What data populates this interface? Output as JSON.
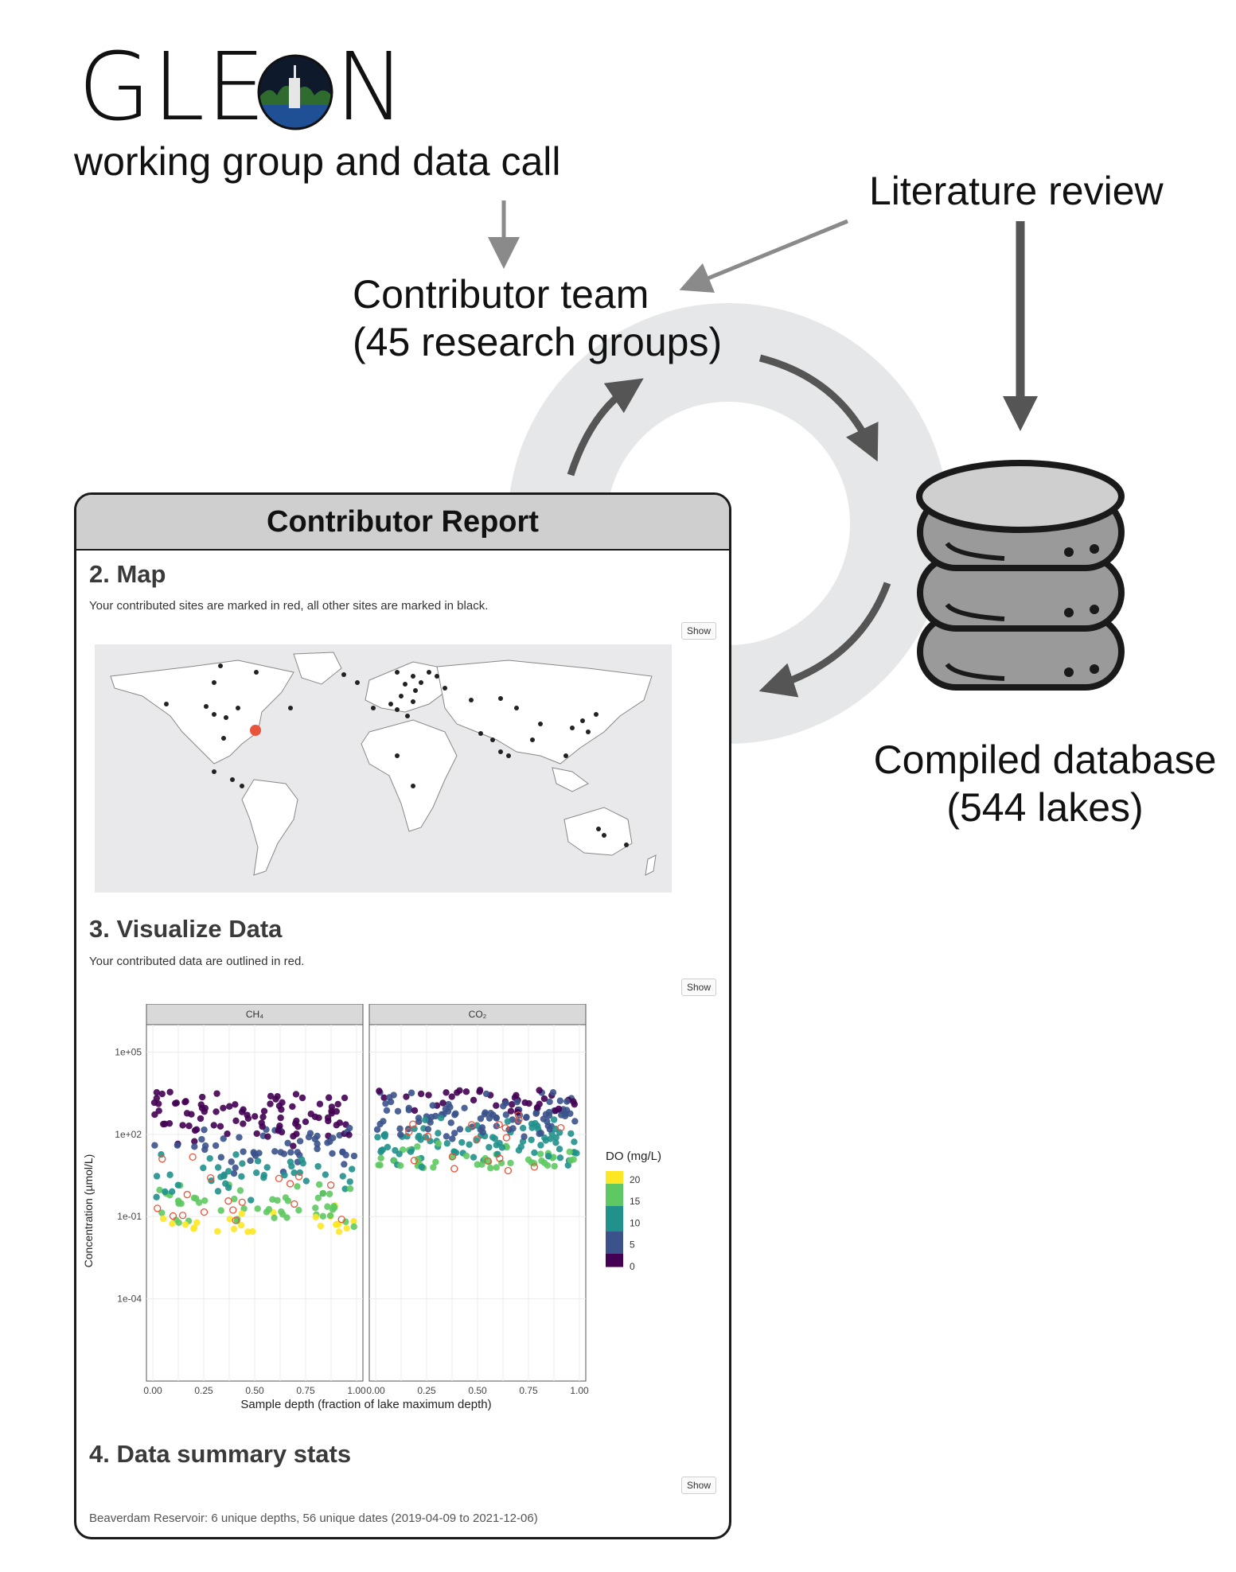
{
  "logo": {
    "text_left": "GLE",
    "text_right": "N"
  },
  "flow": {
    "working_group": "working group and data call",
    "literature": "Literature review",
    "contributor_line1": "Contributor team",
    "contributor_line2": "(45 research groups)",
    "database_line1": "Compiled database",
    "database_line2": "(544 lakes)"
  },
  "report": {
    "header": "Contributor Report",
    "map_title": "2. Map",
    "map_note": "Your contributed sites are marked in red, all other sites are marked in black.",
    "viz_title": "3. Visualize Data",
    "viz_note": "Your contributed data are outlined in red.",
    "stats_title": "4. Data summary stats",
    "stats_text": "Beaverdam Reservoir: 6 unique depths, 56 unique dates (2019-04-09 to 2021-12-06)",
    "show_label": "Show"
  },
  "colors": {
    "arrow_gray": "#8a8a8a",
    "ring_gray": "#e6e7e8",
    "highlight_red": "#e8553a",
    "viridis_high": "#fde725",
    "viridis_mid": "#21918c",
    "viridis_low": "#440154"
  },
  "chart_data": {
    "type": "scatter",
    "panels": [
      "CH₄",
      "CO₂"
    ],
    "xlabel": "Sample depth (fraction of lake maximum depth)",
    "ylabel": "Concentration (µmol/L)",
    "x_ticks": [
      "0.00",
      "0.25",
      "0.50",
      "0.75",
      "1.00"
    ],
    "y_ticks": [
      "1e+05",
      "1e+02",
      "1e-01",
      "1e-04"
    ],
    "xlim": [
      0,
      1
    ],
    "y_scale": "log",
    "legend": {
      "title": "DO (mg/L)",
      "ticks": [
        "20",
        "15",
        "10",
        "5",
        "0"
      ],
      "range": [
        0,
        22
      ],
      "position": "right"
    }
  }
}
